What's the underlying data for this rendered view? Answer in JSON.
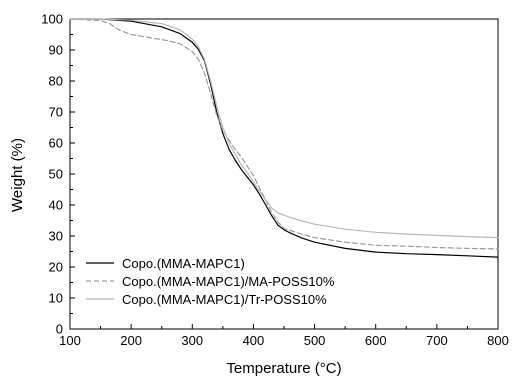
{
  "chart_data": {
    "type": "line",
    "title": "",
    "xlabel": "Temperature (°C)",
    "ylabel": "Weight (%)",
    "xlim": [
      100,
      800
    ],
    "ylim": [
      0,
      100
    ],
    "xticks": [
      100,
      200,
      300,
      400,
      500,
      600,
      700,
      800
    ],
    "yticks": [
      0,
      10,
      20,
      30,
      40,
      50,
      60,
      70,
      80,
      90,
      100
    ],
    "x_tick_labels": [
      "100",
      "200",
      "300",
      "400",
      "500",
      "600",
      "700",
      "800"
    ],
    "y_tick_labels": [
      "0",
      "10",
      "20",
      "30",
      "40",
      "50",
      "60",
      "70",
      "80",
      "90",
      "100"
    ],
    "grid": false,
    "legend_position": "bottom-left",
    "series": [
      {
        "name": "Copo.(MMA-MAPC1)",
        "color": "#000000",
        "dash": "solid",
        "x": [
          100,
          150,
          200,
          250,
          280,
          300,
          310,
          320,
          330,
          340,
          350,
          360,
          370,
          380,
          390,
          400,
          410,
          420,
          430,
          440,
          450,
          460,
          480,
          500,
          550,
          600,
          650,
          700,
          750,
          800
        ],
        "y": [
          100,
          100,
          99.3,
          97.5,
          95.3,
          92.5,
          90.2,
          86.5,
          79,
          70,
          63,
          58,
          54.5,
          51.5,
          49,
          46.5,
          43.5,
          40,
          36.5,
          33.5,
          32,
          31,
          29.3,
          28,
          26,
          24.8,
          24.3,
          24,
          23.6,
          23.2
        ]
      },
      {
        "name": "Copo.(MMA-MAPC1)/MA-POSS10%",
        "color": "#9a9a9a",
        "dash": "dashed",
        "x": [
          100,
          150,
          165,
          180,
          200,
          230,
          260,
          280,
          300,
          310,
          320,
          330,
          340,
          350,
          360,
          370,
          380,
          390,
          400,
          410,
          420,
          430,
          440,
          450,
          480,
          500,
          550,
          600,
          650,
          700,
          750,
          800
        ],
        "y": [
          100,
          99.5,
          98.5,
          96.5,
          95,
          94,
          93,
          92,
          89.5,
          87,
          82.5,
          76,
          69,
          64,
          61,
          58,
          55.5,
          52.5,
          49.5,
          45.5,
          41.5,
          37.5,
          34.5,
          32.5,
          30.5,
          29.5,
          28,
          27,
          26.7,
          26.3,
          26,
          25.8
        ]
      },
      {
        "name": "Copo.(MMA-MAPC1)/Tr-POSS10%",
        "color": "#b8b8b8",
        "dash": "solid",
        "x": [
          100,
          150,
          200,
          250,
          280,
          300,
          310,
          320,
          330,
          340,
          350,
          360,
          370,
          380,
          390,
          400,
          410,
          420,
          430,
          440,
          450,
          460,
          480,
          500,
          550,
          600,
          650,
          700,
          750,
          800
        ],
        "y": [
          100,
          100,
          99.6,
          98.5,
          96.5,
          93.5,
          91,
          87,
          80,
          72,
          65,
          60,
          56.5,
          53,
          50.5,
          47.5,
          44.5,
          41.5,
          39,
          37.5,
          36.7,
          36,
          34.8,
          33.8,
          32.2,
          31.2,
          30.6,
          30.2,
          29.8,
          29.5
        ]
      }
    ]
  }
}
